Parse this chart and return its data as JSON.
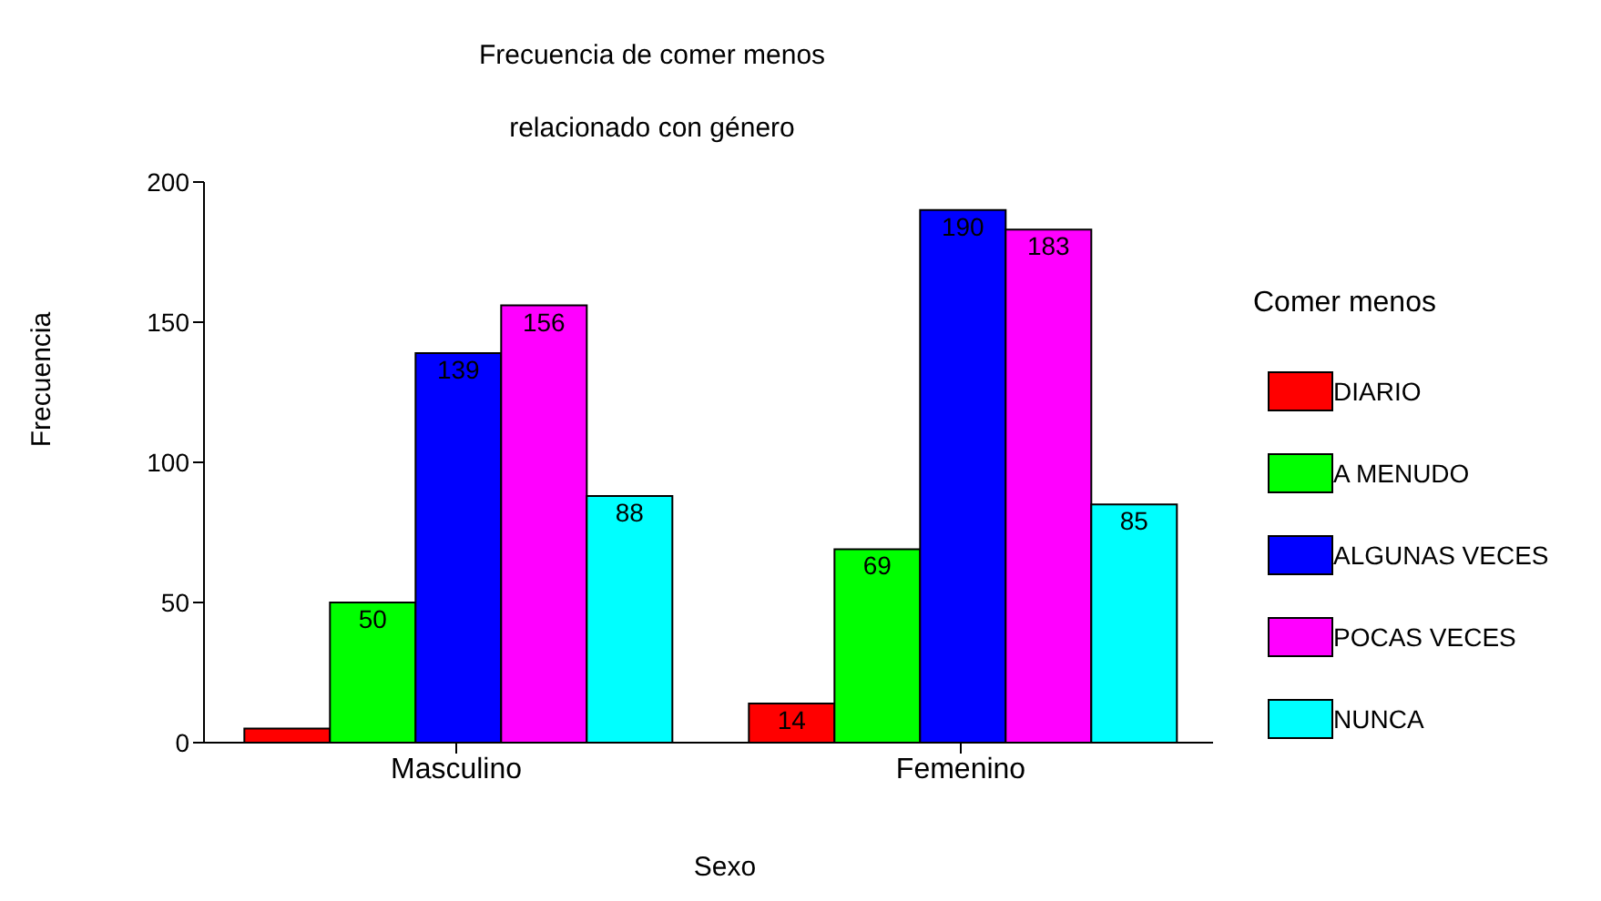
{
  "chart_data": {
    "type": "bar",
    "title": "Frecuencia de comer menos",
    "subtitle": "relacionado con género",
    "xlabel": "Sexo",
    "ylabel": "Frecuencia",
    "legend_title": "Comer menos",
    "categories": [
      "Masculino",
      "Femenino"
    ],
    "series": [
      {
        "name": "DIARIO",
        "color": "#ff0000",
        "values": [
          5,
          14
        ],
        "value_labels": [
          null,
          "14"
        ]
      },
      {
        "name": "A MENUDO",
        "color": "#00ff00",
        "values": [
          50,
          69
        ],
        "value_labels": [
          "50",
          "69"
        ]
      },
      {
        "name": "ALGUNAS VECES",
        "color": "#0000ff",
        "values": [
          139,
          190
        ],
        "value_labels": [
          "139",
          "190"
        ]
      },
      {
        "name": "POCAS VECES",
        "color": "#ff00ff",
        "values": [
          156,
          183
        ],
        "value_labels": [
          "156",
          "183"
        ]
      },
      {
        "name": "NUNCA",
        "color": "#00ffff",
        "values": [
          88,
          85
        ],
        "value_labels": [
          "88",
          "85"
        ]
      }
    ],
    "ylim": [
      0,
      200
    ],
    "yticks": [
      0,
      50,
      100,
      150,
      200
    ],
    "grid": false,
    "legend": "right"
  }
}
